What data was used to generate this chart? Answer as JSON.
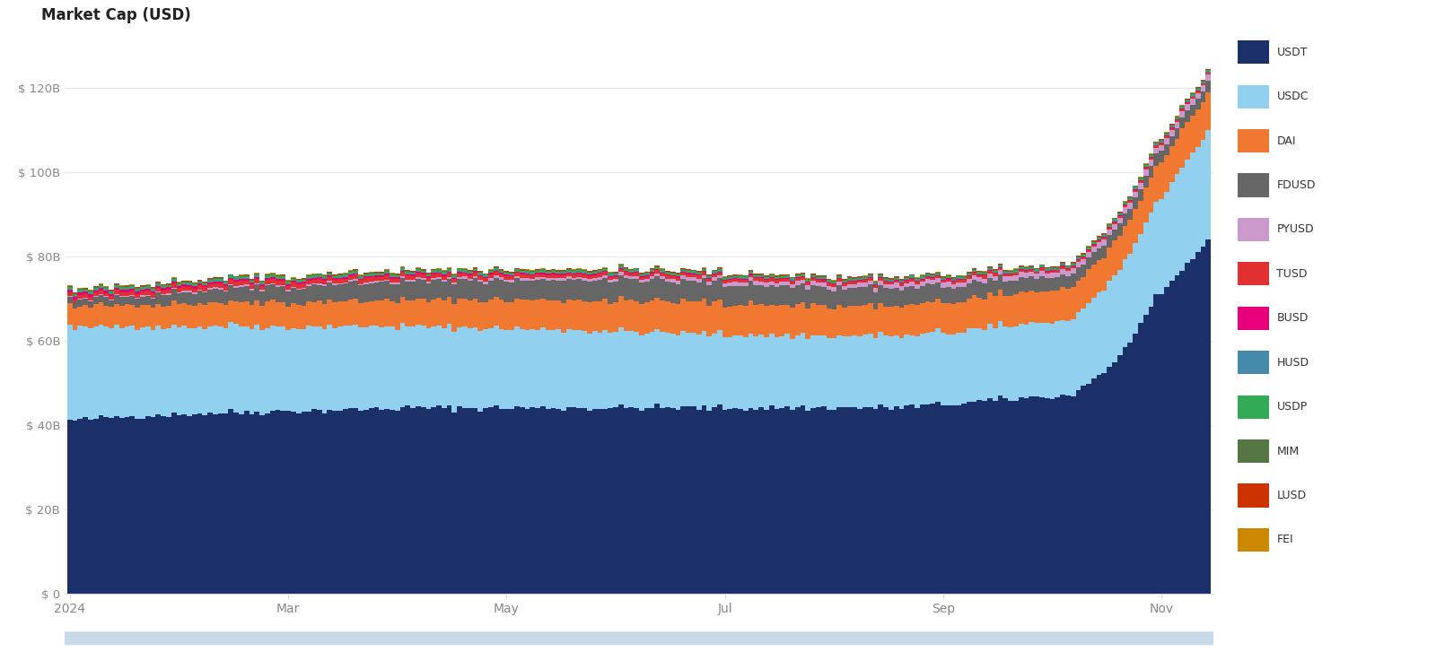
{
  "title": "Market Cap (USD)",
  "bg_color": "#ffffff",
  "grid_color": "#e8e8e8",
  "n_bars": 220,
  "stablecoins": [
    "USDT",
    "USDC",
    "DAI",
    "FDUSD",
    "PYUSD",
    "TUSD",
    "BUSD",
    "HUSD",
    "USDP",
    "MIM",
    "LUSD",
    "FEI"
  ],
  "colors": [
    "#1b3068",
    "#92d0f0",
    "#f07830",
    "#666666",
    "#cc99cc",
    "#e03030",
    "#e8007a",
    "#4488aa",
    "#33aa55",
    "#557744",
    "#cc3300",
    "#cc8800"
  ],
  "ytick_labels": [
    "$ 0",
    "$ 20B",
    "$ 40B",
    "$ 60B",
    "$ 80B",
    "$ 100B",
    "$ 120B"
  ],
  "yticks": [
    0,
    20000000000,
    40000000000,
    60000000000,
    80000000000,
    100000000000,
    120000000000
  ],
  "ylim": [
    0,
    130000000000
  ],
  "x_tick_labels": [
    "2024",
    "Mar",
    "May",
    "Jul",
    "Sep",
    "Nov"
  ],
  "x_tick_positions": [
    0,
    42,
    84,
    126,
    168,
    210
  ]
}
